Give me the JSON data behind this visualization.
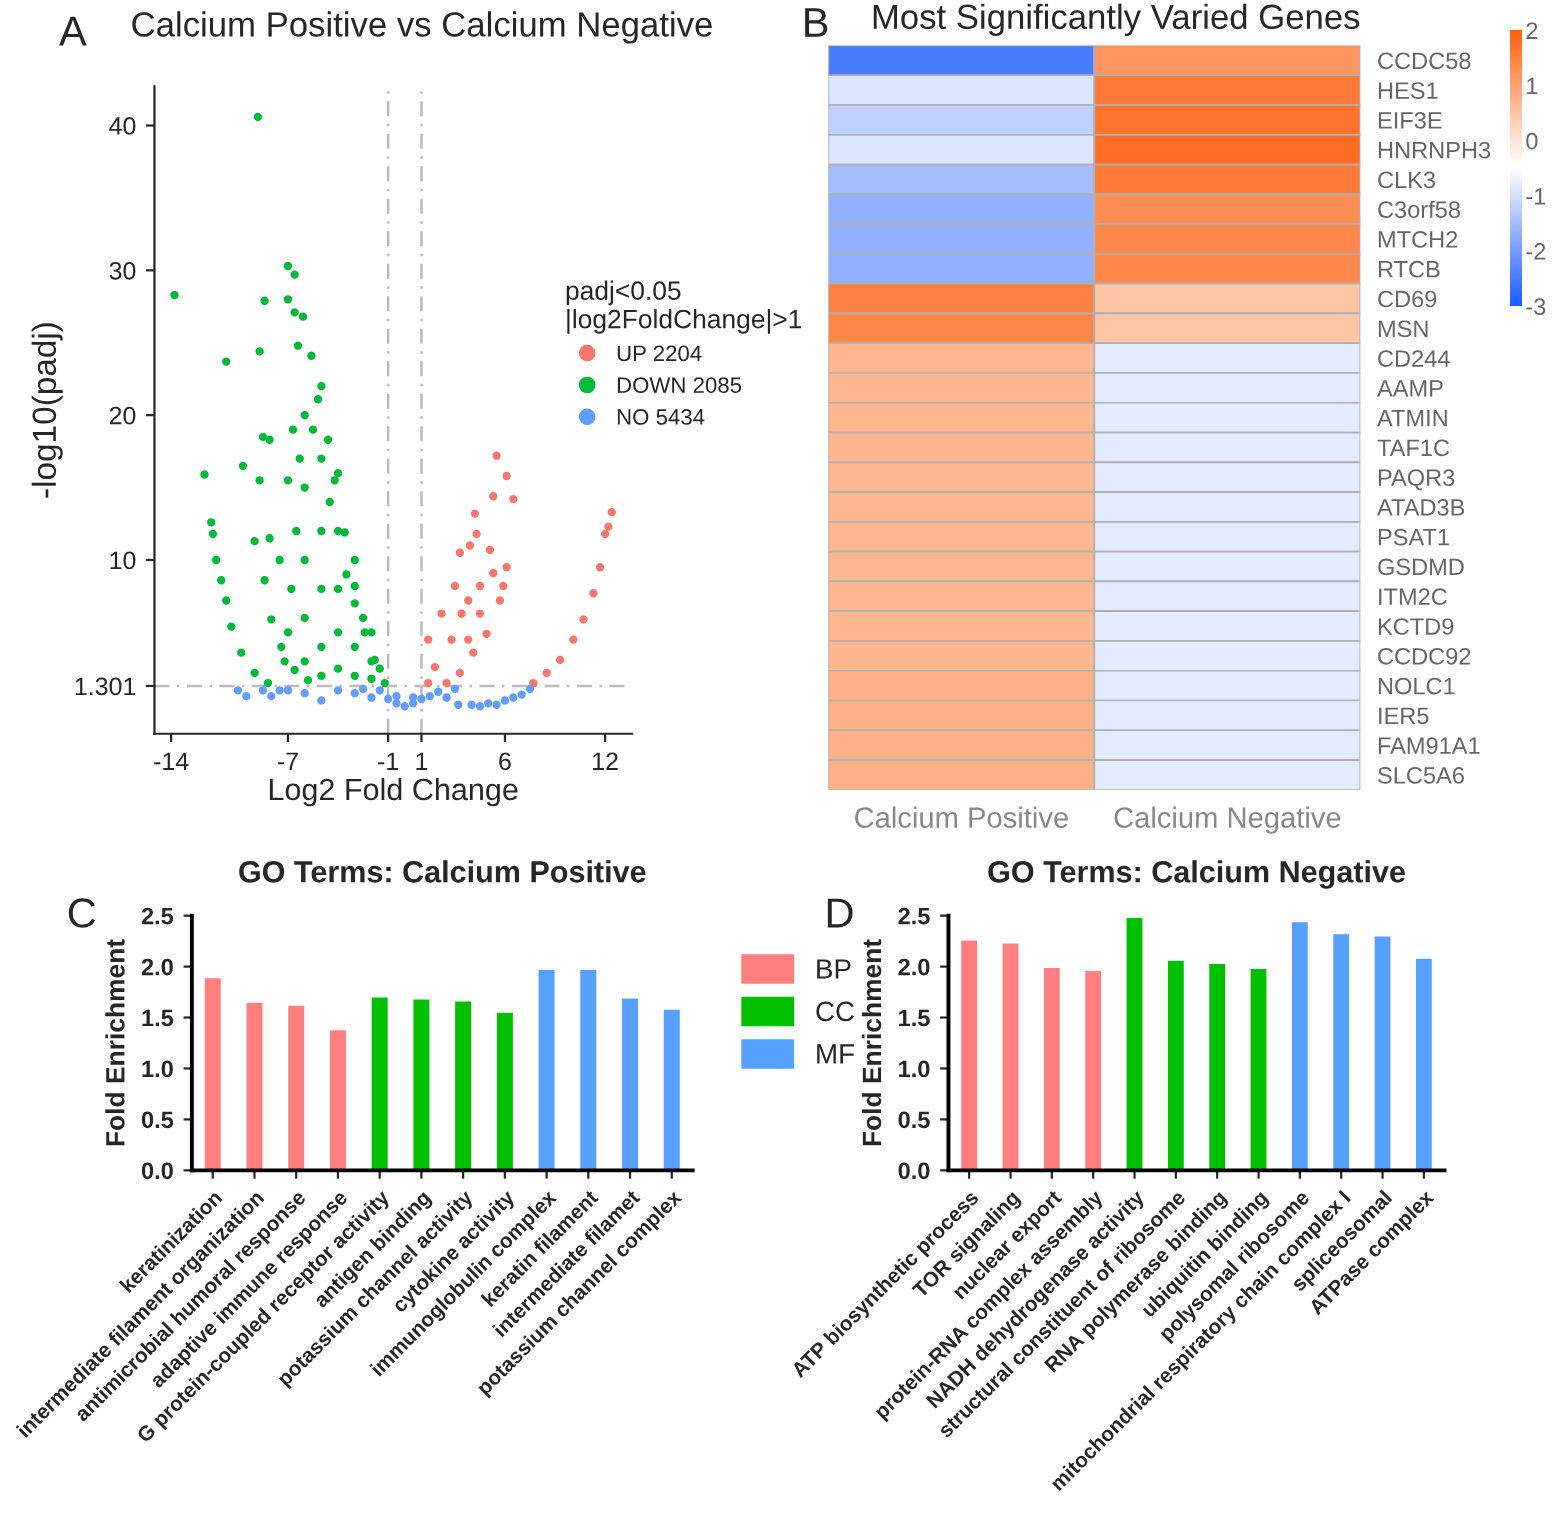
{
  "chart_data": [
    {
      "type": "scatter",
      "title": "Calcium Positive vs Calcium Negative",
      "xlabel": "Log2 Fold Change",
      "ylabel": "-log10(padj)",
      "legend_title": "padj<0.05\n|log2FoldChange|>1",
      "annotations": [
        "A"
      ],
      "xlim": [
        -15,
        13.6
      ],
      "ylim": [
        -2,
        42.7
      ],
      "xticks": [
        -14,
        -7,
        -1,
        1,
        6,
        12
      ],
      "yticks": [
        1.301,
        10,
        20,
        30,
        40
      ],
      "legend": "right",
      "marker": "circle",
      "grid": false,
      "ref_lines": [
        {
          "axis": "x",
          "value": -1,
          "color": "#bbbbbb",
          "line_style": "dashed"
        },
        {
          "axis": "x",
          "value": 1,
          "color": "#bbbbbb",
          "line_style": "dashed"
        },
        {
          "axis": "y",
          "value": 1.301,
          "color": "#bbbbbb",
          "line_style": "dashed"
        }
      ],
      "series": [
        {
          "name": "UP 2204",
          "color": "#f8766d",
          "x": [
            5.5,
            6.1,
            5.3,
            6.5,
            4.2,
            4.3,
            3.3,
            3.9,
            5.1,
            1.4,
            1.8,
            2.2,
            3.0,
            3.8,
            4.5,
            5.3,
            5.7,
            4.9,
            4.1,
            3.3,
            2.5,
            1.4,
            3.8,
            2.8,
            3.4,
            4.5,
            6.1,
            5.9,
            7.7,
            8.5,
            9.3,
            10.1,
            10.7,
            11.3,
            11.7,
            12.0,
            12.2,
            12.4
          ],
          "values": [
            17.2,
            15.8,
            14.4,
            14.2,
            13.2,
            11.8,
            10.5,
            11.0,
            10.7,
            4.5,
            2.6,
            6.3,
            8.2,
            7.2,
            8.2,
            9.1,
            7.2,
            4.9,
            3.6,
            2.2,
            1.5,
            1.5,
            4.5,
            4.5,
            6.3,
            6.3,
            9.5,
            8.2,
            1.5,
            2.2,
            3.1,
            4.5,
            5.9,
            7.7,
            9.5,
            11.8,
            12.3,
            13.3
          ]
        },
        {
          "name": "DOWN 2085",
          "color": "#00ba38",
          "x": [
            -8.8,
            -13.8,
            -7.0,
            -6.6,
            -8.4,
            -10.7,
            -8.7,
            -12.0,
            -11.6,
            -9.7,
            -8.5,
            -8.1,
            -7.0,
            -6.6,
            -6.1,
            -8.7,
            -8.1,
            -9.0,
            -7.0,
            -6.7,
            -11.5,
            -11.3,
            -11.0,
            -10.7,
            -10.4,
            -9.8,
            -9.0,
            -8.2,
            -8.4,
            -8.0,
            -7.4,
            -6.6,
            -5.8,
            -6.4,
            -5.6,
            -5.2,
            -4.6,
            -4.2,
            -3.6,
            -3.0,
            -2.4,
            -1.8,
            -1.2,
            -6,
            -6,
            -6,
            -6,
            -6,
            -5,
            -5,
            -5,
            -5,
            -5,
            -5,
            -4,
            -4,
            -4,
            -4,
            -4,
            -3,
            -3,
            -3,
            -3,
            -2,
            -2,
            -2,
            -6.5,
            -6.8,
            -7,
            -6.3,
            -5.5,
            -4.5,
            -3.5,
            -2.5,
            -1.5,
            -7.5,
            -7.2
          ],
          "values": [
            40.6,
            28.3,
            30.3,
            29.7,
            27.9,
            23.7,
            24.4,
            15.9,
            12.6,
            16.5,
            18.5,
            18.3,
            28,
            27.1,
            26.8,
            15.5,
            11.5,
            11.3,
            15.5,
            19.0,
            11.8,
            10.0,
            8.6,
            7.2,
            5.4,
            3.6,
            2.2,
            1.5,
            8.6,
            5.9,
            4.0,
            2.4,
            1.7,
            24.8,
            24.1,
            21.1,
            18.3,
            15.5,
            11.9,
            8.2,
            5.0,
            3.1,
            1.5,
            20,
            15,
            10,
            6,
            3,
            22,
            17,
            12,
            8,
            4,
            2,
            16,
            12,
            8,
            5,
            2.5,
            10,
            7,
            4,
            2,
            5,
            3,
            1.8,
            12,
            8,
            5,
            17,
            19,
            14,
            9,
            6,
            2.5,
            10,
            3
          ]
        },
        {
          "name": "NO 5434",
          "color": "#619cff",
          "x": [
            -10,
            -9.5,
            -8.5,
            -8,
            -7.5,
            -7,
            -6,
            -5,
            -4,
            -3,
            -2.5,
            -2,
            -1.5,
            -1,
            -0.5,
            -0.5,
            0,
            0.5,
            0.5,
            1,
            1.5,
            2,
            2.5,
            3,
            3.2,
            4,
            4.5,
            5,
            5.5,
            6,
            6.5,
            7,
            7.5
          ],
          "values": [
            1.0,
            0.6,
            1.0,
            0.6,
            1.0,
            1.0,
            0.8,
            0.3,
            1.0,
            0.8,
            1.1,
            0.5,
            1.0,
            0.4,
            0.1,
            0.6,
            -0.1,
            0.1,
            0.5,
            0.4,
            0.6,
            0.9,
            0.5,
            1.1,
            0.0,
            0.0,
            -0.1,
            0.1,
            0.0,
            0.3,
            0.5,
            0.7,
            1.1
          ]
        }
      ]
    },
    {
      "type": "heatmap",
      "title": "Most Significantly Varied Genes",
      "annotations": [
        "B"
      ],
      "categories": [
        "Calcium Positive",
        "Calcium Negative"
      ],
      "y_categories": [
        "CCDC58",
        "HES1",
        "EIF3E",
        "HNRNPH3",
        "CLK3",
        "C3orf58",
        "MTCH2",
        "RTCB",
        "CD69",
        "MSN",
        "CD244",
        "AAMP",
        "ATMIN",
        "TAF1C",
        "PAQR3",
        "ATAD3B",
        "PSAT1",
        "GSDMD",
        "ITM2C",
        "KCTD9",
        "CCDC92",
        "NOLC1",
        "IER5",
        "FAM91A1",
        "SLC5A6"
      ],
      "cells": [
        [
          -2.5,
          1.2
        ],
        [
          -0.9,
          1.6
        ],
        [
          -1.2,
          1.7
        ],
        [
          -0.9,
          1.8
        ],
        [
          -1.5,
          1.6
        ],
        [
          -1.7,
          1.3
        ],
        [
          -1.7,
          1.4
        ],
        [
          -1.7,
          1.4
        ],
        [
          1.5,
          0.5
        ],
        [
          1.4,
          0.5
        ],
        [
          0.7,
          -0.8
        ],
        [
          0.7,
          -0.8
        ],
        [
          0.7,
          -0.8
        ],
        [
          0.7,
          -0.8
        ],
        [
          0.7,
          -0.8
        ],
        [
          0.7,
          -0.8
        ],
        [
          0.7,
          -0.8
        ],
        [
          0.7,
          -0.8
        ],
        [
          0.7,
          -0.8
        ],
        [
          0.7,
          -0.8
        ],
        [
          0.7,
          -0.8
        ],
        [
          0.8,
          -0.8
        ],
        [
          0.8,
          -0.8
        ],
        [
          0.8,
          -0.8
        ],
        [
          0.8,
          -0.8
        ]
      ],
      "clim": [
        -3,
        2
      ],
      "cticks": [
        {
          "value": -3,
          "label": "-3"
        },
        {
          "value": -2,
          "label": "-2"
        },
        {
          "value": -1,
          "label": "-1"
        },
        0,
        1,
        2
      ]
    },
    {
      "type": "bar",
      "title": "GO Terms: Calcium Positive",
      "ylabel": "Fold Enrichment",
      "annotations": [
        "C"
      ],
      "legend": "right",
      "categories": [
        "keratinization",
        "intermediate filament organization",
        "antimicrobial humoral response",
        "adaptive immune response",
        "G protein-coupled receptor activity",
        "antigen binding",
        "potassium channel activity",
        "cytokine activity",
        "immunoglobulin complex",
        "keratin filament",
        "intermediate filamet",
        "potassium channel complex"
      ],
      "ylim": [
        0,
        2.5
      ],
      "yticks": [
        {
          "value": 0,
          "label": "0.0"
        },
        {
          "value": 0.5,
          "label": "0.5"
        },
        {
          "value": 1,
          "label": "1.0"
        },
        {
          "value": 1.5,
          "label": "1.5"
        },
        {
          "value": 2,
          "label": "2.0"
        },
        {
          "value": 2.5,
          "label": "2.5"
        }
      ],
      "series": [
        {
          "name": "BP",
          "color": "#ff7f7f",
          "values": [
            1.9,
            1.66,
            1.63,
            1.39,
            null,
            null,
            null,
            null,
            null,
            null,
            null,
            null
          ]
        },
        {
          "name": "CC",
          "color": "#00c000",
          "values": [
            null,
            null,
            null,
            null,
            1.71,
            1.69,
            1.67,
            1.56,
            null,
            null,
            null,
            null
          ]
        },
        {
          "name": "MF",
          "color": "#56a0ff",
          "values": [
            null,
            null,
            null,
            null,
            null,
            null,
            null,
            null,
            1.98,
            1.98,
            1.7,
            1.59
          ]
        }
      ]
    },
    {
      "type": "bar",
      "title": "GO Terms: Calcium Negative",
      "ylabel": "Fold Enrichment",
      "annotations": [
        "D"
      ],
      "categories": [
        "ATP biosynthetic process",
        "TOR signaling",
        "nuclear export",
        "protein-RNA complex assembly",
        "NADH dehydrogenase activity",
        "structural constituent of ribosome",
        "RNA polymerase binding",
        "ubiquitin binding",
        "polysomal ribosome",
        "mitochondrial respiratory chain complex I",
        "spliceosomal",
        "ATPase complex"
      ],
      "ylim": [
        0,
        2.5
      ],
      "yticks": [
        {
          "value": 0,
          "label": "0.0"
        },
        {
          "value": 0.5,
          "label": "0.5"
        },
        {
          "value": 1,
          "label": "1.0"
        },
        {
          "value": 1.5,
          "label": "1.5"
        },
        {
          "value": 2,
          "label": "2.0"
        },
        {
          "value": 2.5,
          "label": "2.5"
        }
      ],
      "series": [
        {
          "color": "#ff7f7f",
          "values": [
            2.27,
            2.24,
            2.0,
            1.97,
            null,
            null,
            null,
            null,
            null,
            null,
            null,
            null
          ]
        },
        {
          "color": "#00c000",
          "values": [
            null,
            null,
            null,
            null,
            2.49,
            2.07,
            2.04,
            1.99,
            null,
            null,
            null,
            null
          ]
        },
        {
          "color": "#56a0ff",
          "values": [
            null,
            null,
            null,
            null,
            null,
            null,
            null,
            null,
            2.45,
            2.33,
            2.31,
            2.09
          ]
        }
      ]
    }
  ]
}
